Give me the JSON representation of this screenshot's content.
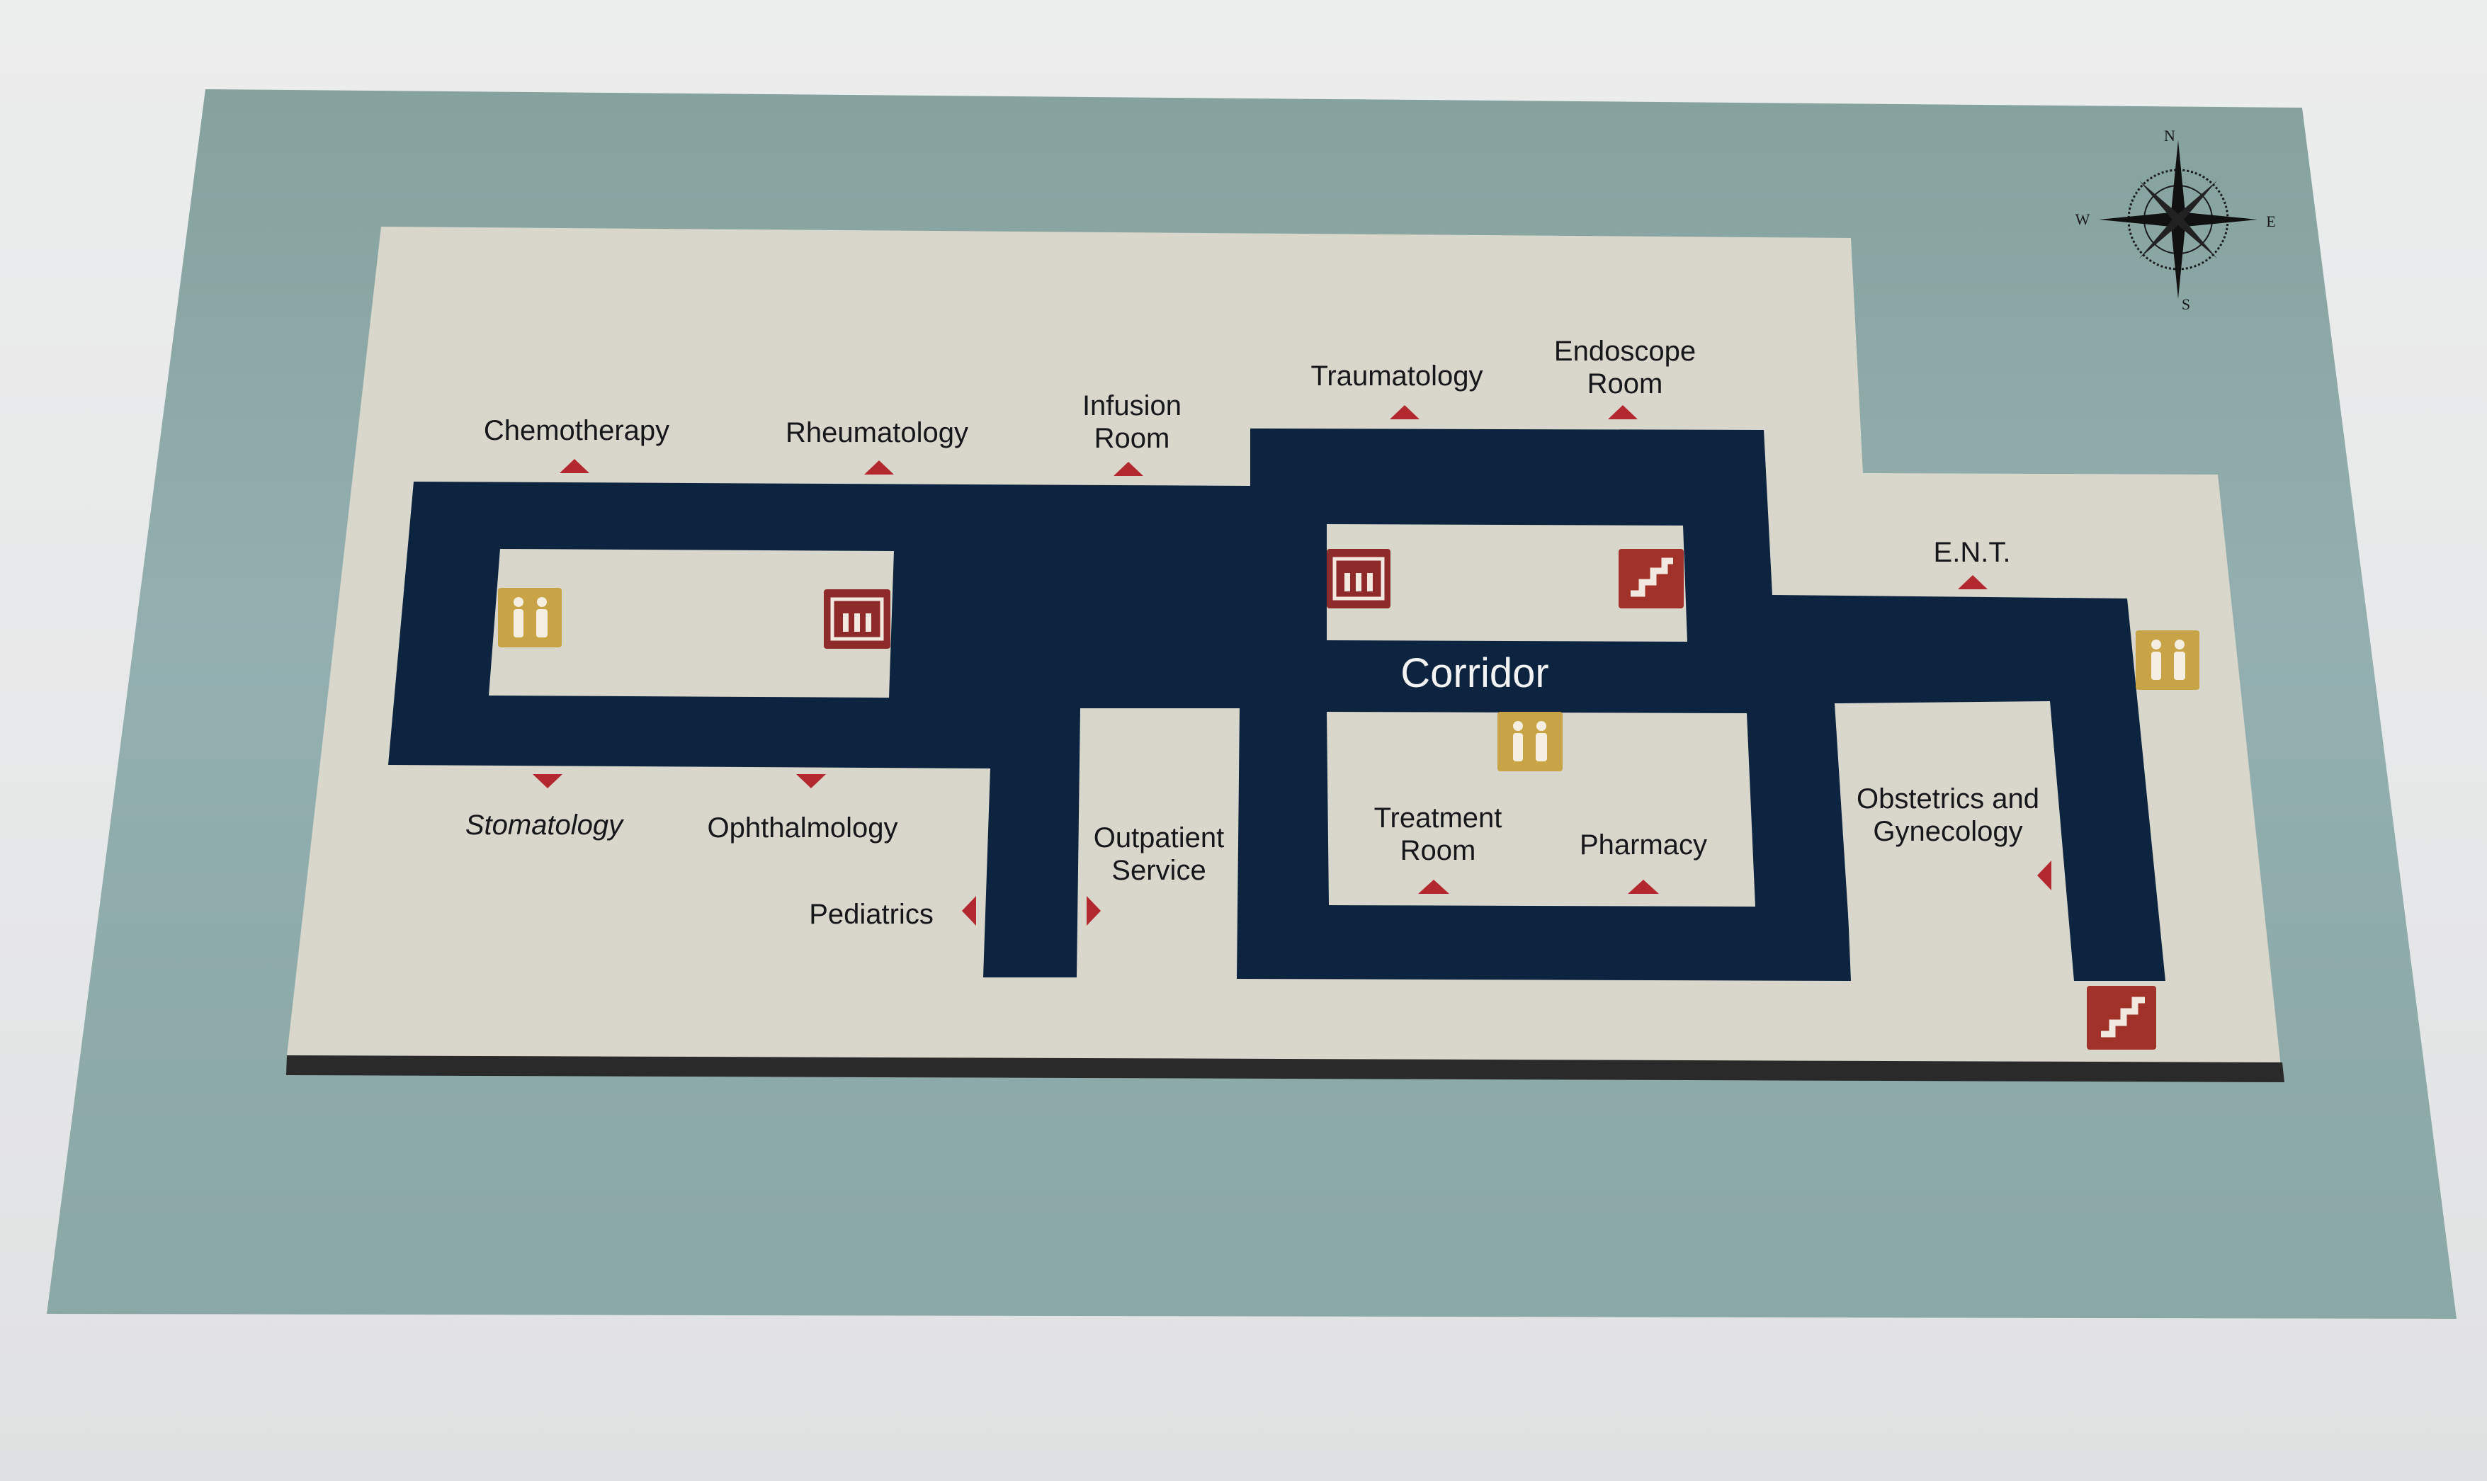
{
  "map": {
    "corridor_label": "Corridor",
    "departments": {
      "chemotherapy": "Chemotherapy",
      "rheumatology": "Rheumatology",
      "infusion_room": [
        "Infusion",
        "Room"
      ],
      "traumatology": "Traumatology",
      "endoscope_room": [
        "Endoscope",
        "Room"
      ],
      "ent": "E.N.T.",
      "stomatology": "Stomatology",
      "ophthalmology": "Ophthalmology",
      "pediatrics": "Pediatrics",
      "outpatient_service": [
        "Outpatient",
        "Service"
      ],
      "treatment_room": [
        "Treatment",
        "Room"
      ],
      "pharmacy": "Pharmacy",
      "obstetrics_gynecology": [
        "Obstetrics and",
        "Gynecology"
      ]
    },
    "compass": {
      "n": "N",
      "e": "E",
      "s": "S",
      "w": "W"
    },
    "icons": [
      "restroom-icon",
      "elevator-icon",
      "stairs-icon",
      "direction-arrow-icon",
      "compass-rose-icon"
    ]
  },
  "colors": {
    "poster_bg": "#8fa9a6",
    "floor": "#d8d4c8",
    "corridor": "#0c2440",
    "arrow": "#b3282f",
    "restroom": "#c8a447",
    "elevator_stairs": "#8f2a2a"
  }
}
